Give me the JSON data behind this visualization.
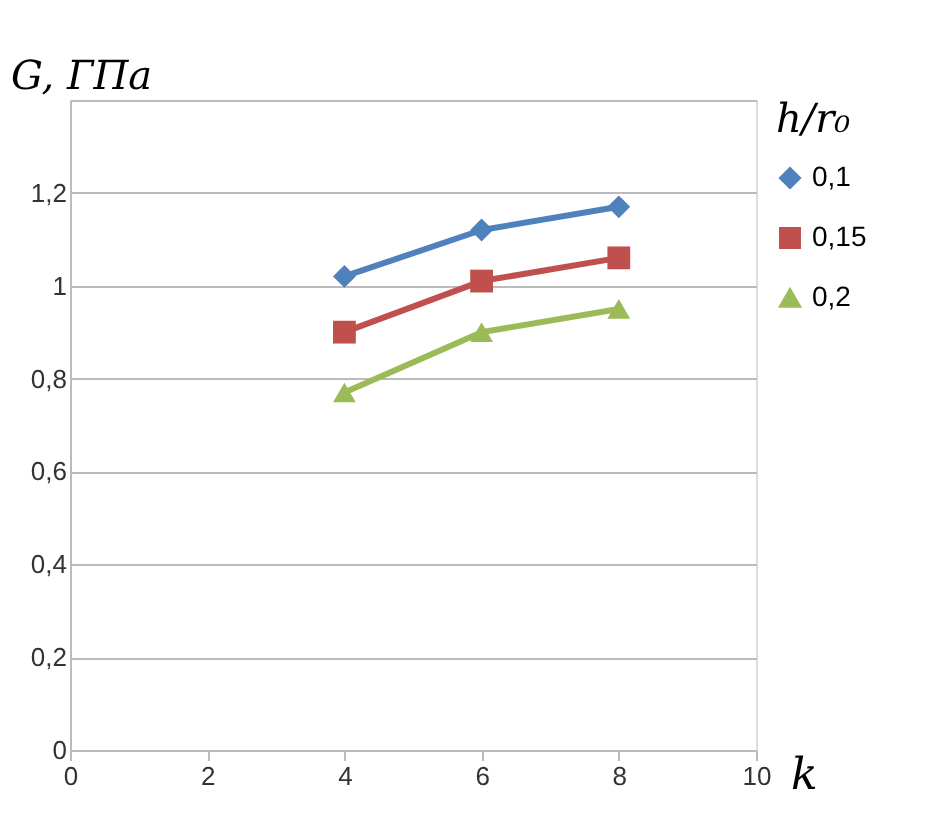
{
  "chart_data": {
    "type": "line",
    "xlabel": "k",
    "ylabel": "G, ГПа",
    "legend_title": "h/r₀",
    "legend": "right",
    "grid": "y",
    "x": [
      4,
      6,
      8
    ],
    "xlim": [
      0,
      10
    ],
    "xticks": [
      0,
      2,
      4,
      6,
      8,
      10
    ],
    "ylim": [
      0,
      1.4
    ],
    "yticks": [
      0,
      {
        "value": 0.2,
        "label": "0,2"
      },
      {
        "value": 0.4,
        "label": "0,4"
      },
      {
        "value": 0.6,
        "label": "0,6"
      },
      {
        "value": 0.8,
        "label": "0,8"
      },
      1,
      {
        "value": 1.2,
        "label": "1,2"
      },
      {
        "value": 1.4,
        "label": null
      }
    ],
    "series": [
      {
        "name": "0,1",
        "color": "#4f81bd",
        "marker": "diamond",
        "values": [
          1.02,
          1.12,
          1.17
        ]
      },
      {
        "name": "0,15",
        "color": "#c0504d",
        "marker": "square",
        "values": [
          0.9,
          1.01,
          1.06
        ]
      },
      {
        "name": "0,2",
        "color": "#9bbb59",
        "marker": "triangle",
        "values": [
          0.77,
          0.9,
          0.95
        ]
      }
    ]
  }
}
